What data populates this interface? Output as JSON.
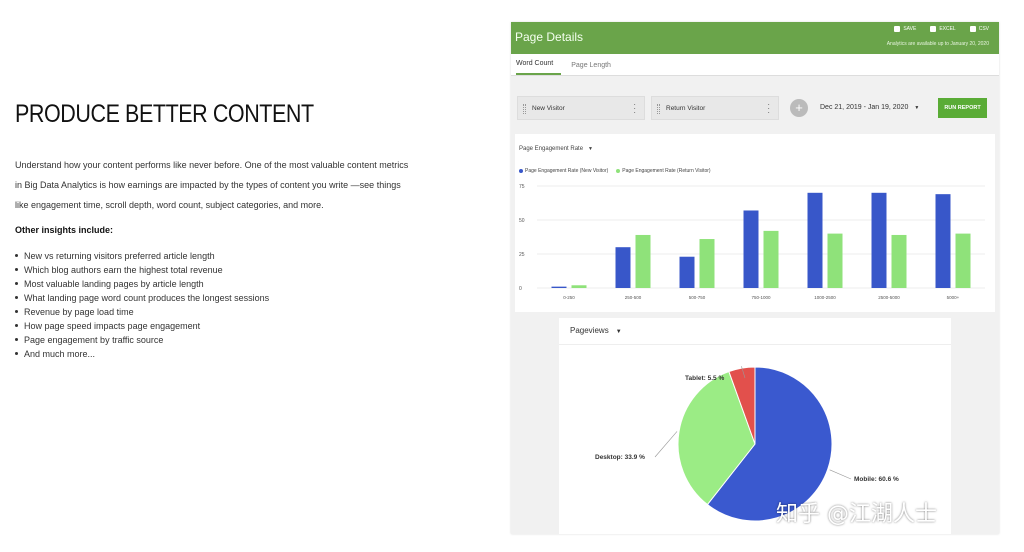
{
  "marketing": {
    "headline": "PRODUCE BETTER CONTENT",
    "intro": "Understand how your content performs like never before. One of the most valuable content metrics in Big Data Analytics is how earnings are impacted by the types of content you write —see things like engagement time, scroll depth, word count, subject categories, and more.",
    "other_heading": "Other insights include:",
    "insights": [
      "New vs returning visitors preferred article length",
      "Which blog authors earn the highest total revenue",
      "Most valuable landing pages by article length",
      "What landing page word count produces the longest sessions",
      "Revenue by page load time",
      "How page speed impacts page engagement",
      "Page engagement by traffic source",
      "And much more..."
    ]
  },
  "app": {
    "title": "Page Details",
    "actions": {
      "save": "SAVE",
      "excel": "EXCEL",
      "csv": "CSV"
    },
    "availability": "Analytics are available up to January 20, 2020",
    "tabs": [
      {
        "label": "Word Count",
        "active": true
      },
      {
        "label": "Page Length",
        "active": false
      }
    ],
    "segments": [
      "New Visitor",
      "Return Visitor"
    ],
    "add_segment": "+",
    "date_range": "Dec 21, 2019 - Jan 19, 2020",
    "run_report": "RUN REPORT"
  },
  "colors": {
    "header": "#6aa44a",
    "new_visitor": "#3857c9",
    "return_visitor": "#8fe27a",
    "desktop": "#9bec85",
    "mobile": "#3a59cf",
    "tablet": "#e2504c",
    "run": "#5aac36"
  },
  "icons": {
    "save": "save-icon",
    "excel": "excel-icon",
    "csv": "csv-icon",
    "dropdown": "chevron-down-icon",
    "more": "more-vert-icon",
    "drag": "drag-handle-icon"
  },
  "engagement_chart": {
    "metric": "Page Engagement Rate",
    "chart_data": {
      "type": "bar",
      "categories": [
        "0-250",
        "250-500",
        "500-750",
        "750-1000",
        "1000-2500",
        "2500-5000",
        "5000+"
      ],
      "series": [
        {
          "name": "Page Engagement Rate (New Visitor)",
          "values": [
            1,
            30,
            23,
            57,
            70,
            70,
            69
          ]
        },
        {
          "name": "Page Engagement Rate (Return Visitor)",
          "values": [
            2,
            39,
            36,
            42,
            40,
            39,
            40
          ]
        }
      ],
      "yticks": [
        "0",
        "25",
        "50",
        "75"
      ],
      "ylim": [
        0,
        75
      ],
      "legend": "top-left"
    }
  },
  "pageviews_chart": {
    "metric": "Pageviews",
    "chart_data": {
      "type": "pie",
      "slices": [
        {
          "label": "Mobile",
          "value": 60.6,
          "text": "Mobile: 60.6 %"
        },
        {
          "label": "Desktop",
          "value": 33.9,
          "text": "Desktop: 33.9 %"
        },
        {
          "label": "Tablet",
          "value": 5.5,
          "text": "Tablet: 5.5 %"
        }
      ]
    }
  },
  "watermark": "知乎 @江湖人士"
}
